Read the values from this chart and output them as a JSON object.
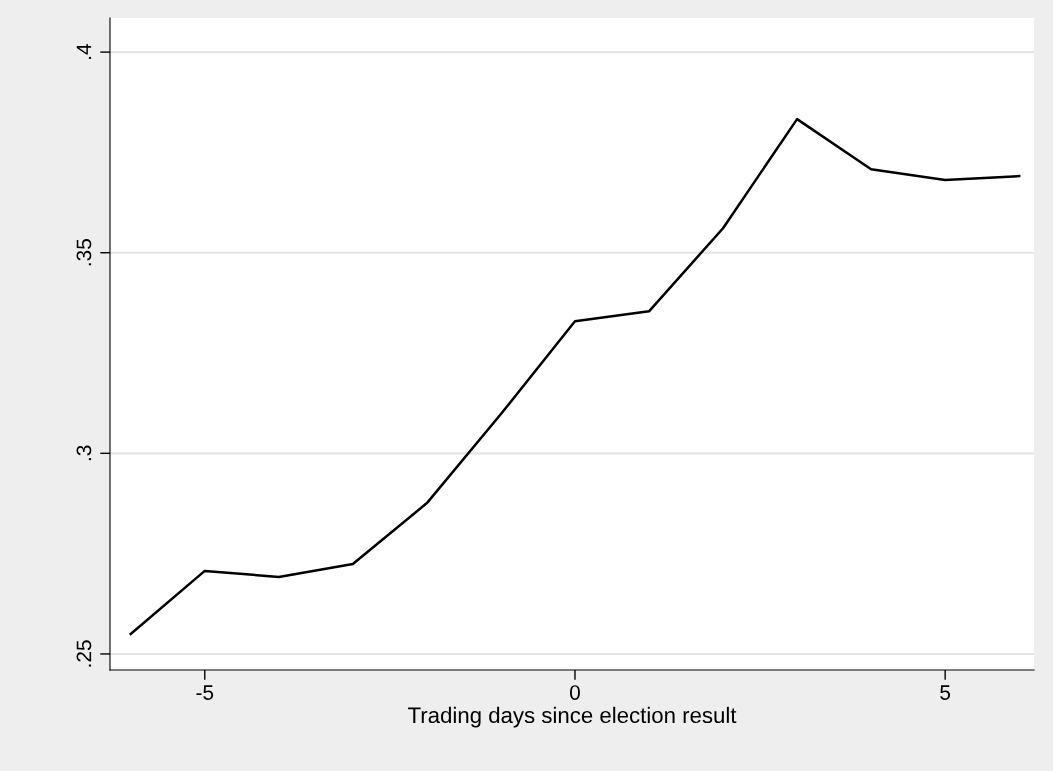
{
  "chart_data": {
    "type": "line",
    "xlabel": "Trading days since election result",
    "x": [
      -6,
      -5,
      -4,
      -3,
      -2,
      -1,
      0,
      1,
      2,
      3,
      4,
      5,
      6
    ],
    "series": [
      {
        "color": "#000000",
        "values": [
          0.255,
          0.2707,
          0.2692,
          0.2724,
          0.2876,
          0.3098,
          0.3329,
          0.3354,
          0.3561,
          0.3833,
          0.3708,
          0.3681,
          0.3691
        ]
      }
    ],
    "xlim": [
      -6.28,
      6.2
    ],
    "xticks": [
      -5,
      0,
      5
    ],
    "ylim": [
      0.246,
      0.4085
    ],
    "yticks": [
      {
        "value": 0.25,
        "label": ".25"
      },
      {
        "value": 0.3,
        "label": ".3"
      },
      {
        "value": 0.35,
        "label": ".35"
      },
      {
        "value": 0.4,
        "label": ".4"
      }
    ],
    "grid": "y"
  }
}
